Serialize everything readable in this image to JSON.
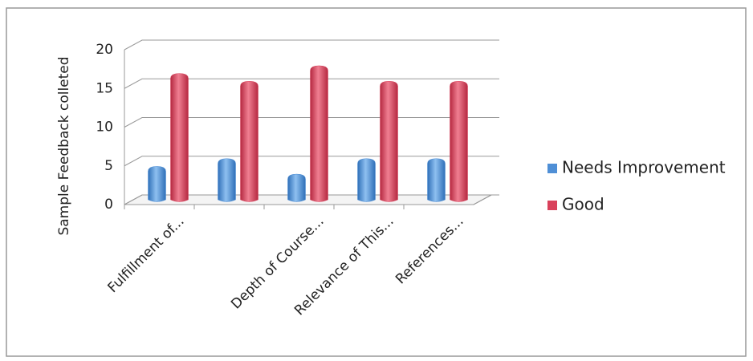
{
  "chart_data": {
    "type": "bar3d",
    "y_label": "Sample Feedback colleted",
    "categories": [
      "Fulfillment of...",
      null,
      "Depth of Course...",
      "Relevance of This...",
      "References..."
    ],
    "series": [
      {
        "name": "Needs Improvement",
        "color": "#4f8fd6",
        "values": [
          4,
          5,
          3,
          5,
          5
        ]
      },
      {
        "name": "Good",
        "color": "#d9415b",
        "values": [
          16,
          15,
          17,
          15,
          15
        ]
      }
    ],
    "ylim": [
      0,
      20
    ],
    "yticks": [
      0,
      5,
      10,
      15,
      20
    ],
    "grid": true,
    "legend": "right"
  }
}
